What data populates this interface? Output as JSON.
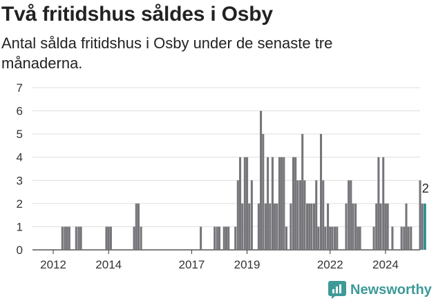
{
  "header": {
    "title": "Två fritidshus såldes i Osby",
    "subtitle": "Antal sålda fritidshus i Osby under de senaste tre månaderna."
  },
  "brand": {
    "name": "Newsworthy",
    "color": "#3d9a98"
  },
  "colors": {
    "bar": "#75757a",
    "highlight": "#20868a",
    "grid": "#dddddd",
    "axis": "#333333"
  },
  "chart_data": {
    "type": "bar",
    "title": "Två fritidshus såldes i Osby",
    "subtitle": "Antal sålda fritidshus i Osby under de senaste tre månaderna.",
    "ylim": [
      0,
      7
    ],
    "y_ticks": [
      0,
      1,
      2,
      3,
      4,
      5,
      6,
      7
    ],
    "x_ticks": [
      {
        "label": "2012",
        "x": 2012.25
      },
      {
        "label": "2014",
        "x": 2014.25
      },
      {
        "label": "2017",
        "x": 2017.25
      },
      {
        "label": "2019",
        "x": 2019.25
      },
      {
        "label": "2022",
        "x": 2022.25
      },
      {
        "label": "2024",
        "x": 2024.25
      }
    ],
    "x_range": [
      2011.5,
      2025.5
    ],
    "grid": true,
    "bar_width_months": 1,
    "series": [
      {
        "points": [
          {
            "x": 2012.58,
            "y": 1
          },
          {
            "x": 2012.67,
            "y": 1
          },
          {
            "x": 2012.75,
            "y": 1
          },
          {
            "x": 2012.83,
            "y": 1
          },
          {
            "x": 2013.08,
            "y": 1
          },
          {
            "x": 2013.17,
            "y": 1
          },
          {
            "x": 2013.25,
            "y": 1
          },
          {
            "x": 2014.17,
            "y": 1
          },
          {
            "x": 2014.25,
            "y": 1
          },
          {
            "x": 2014.33,
            "y": 1
          },
          {
            "x": 2015.17,
            "y": 1
          },
          {
            "x": 2015.25,
            "y": 2
          },
          {
            "x": 2015.33,
            "y": 2
          },
          {
            "x": 2015.42,
            "y": 1
          },
          {
            "x": 2017.58,
            "y": 1
          },
          {
            "x": 2018.08,
            "y": 1
          },
          {
            "x": 2018.17,
            "y": 1
          },
          {
            "x": 2018.25,
            "y": 1
          },
          {
            "x": 2018.42,
            "y": 1
          },
          {
            "x": 2018.5,
            "y": 1
          },
          {
            "x": 2018.58,
            "y": 1
          },
          {
            "x": 2018.83,
            "y": 1
          },
          {
            "x": 2018.92,
            "y": 3
          },
          {
            "x": 2019.0,
            "y": 4
          },
          {
            "x": 2019.08,
            "y": 2
          },
          {
            "x": 2019.17,
            "y": 4
          },
          {
            "x": 2019.25,
            "y": 4
          },
          {
            "x": 2019.33,
            "y": 2
          },
          {
            "x": 2019.42,
            "y": 3
          },
          {
            "x": 2019.67,
            "y": 2
          },
          {
            "x": 2019.75,
            "y": 6
          },
          {
            "x": 2019.83,
            "y": 5
          },
          {
            "x": 2019.92,
            "y": 2
          },
          {
            "x": 2020.0,
            "y": 4
          },
          {
            "x": 2020.08,
            "y": 2
          },
          {
            "x": 2020.17,
            "y": 4
          },
          {
            "x": 2020.25,
            "y": 2
          },
          {
            "x": 2020.33,
            "y": 2
          },
          {
            "x": 2020.42,
            "y": 4
          },
          {
            "x": 2020.5,
            "y": 4
          },
          {
            "x": 2020.58,
            "y": 4
          },
          {
            "x": 2020.67,
            "y": 1
          },
          {
            "x": 2020.83,
            "y": 2
          },
          {
            "x": 2020.92,
            "y": 4
          },
          {
            "x": 2021.0,
            "y": 4
          },
          {
            "x": 2021.08,
            "y": 3
          },
          {
            "x": 2021.17,
            "y": 3
          },
          {
            "x": 2021.25,
            "y": 5
          },
          {
            "x": 2021.33,
            "y": 3
          },
          {
            "x": 2021.42,
            "y": 2
          },
          {
            "x": 2021.5,
            "y": 2
          },
          {
            "x": 2021.58,
            "y": 2
          },
          {
            "x": 2021.67,
            "y": 2
          },
          {
            "x": 2021.75,
            "y": 3
          },
          {
            "x": 2021.83,
            "y": 1
          },
          {
            "x": 2021.92,
            "y": 5
          },
          {
            "x": 2022.0,
            "y": 3
          },
          {
            "x": 2022.08,
            "y": 1
          },
          {
            "x": 2022.17,
            "y": 2
          },
          {
            "x": 2022.25,
            "y": 1
          },
          {
            "x": 2022.33,
            "y": 1
          },
          {
            "x": 2022.42,
            "y": 1
          },
          {
            "x": 2022.5,
            "y": 1
          },
          {
            "x": 2022.83,
            "y": 2
          },
          {
            "x": 2022.92,
            "y": 3
          },
          {
            "x": 2023.0,
            "y": 3
          },
          {
            "x": 2023.08,
            "y": 2
          },
          {
            "x": 2023.17,
            "y": 2
          },
          {
            "x": 2023.25,
            "y": 1
          },
          {
            "x": 2023.33,
            "y": 1
          },
          {
            "x": 2023.83,
            "y": 1
          },
          {
            "x": 2023.92,
            "y": 2
          },
          {
            "x": 2024.0,
            "y": 4
          },
          {
            "x": 2024.08,
            "y": 2
          },
          {
            "x": 2024.17,
            "y": 4
          },
          {
            "x": 2024.25,
            "y": 2
          },
          {
            "x": 2024.33,
            "y": 2
          },
          {
            "x": 2024.5,
            "y": 1
          },
          {
            "x": 2024.83,
            "y": 1
          },
          {
            "x": 2024.92,
            "y": 1
          },
          {
            "x": 2025.0,
            "y": 2
          },
          {
            "x": 2025.08,
            "y": 1
          },
          {
            "x": 2025.17,
            "y": 1
          },
          {
            "x": 2025.5,
            "y": 3
          },
          {
            "x": 2025.58,
            "y": 2
          }
        ]
      }
    ],
    "highlight": {
      "x": 2025.67,
      "y": 2,
      "label": "2"
    }
  }
}
